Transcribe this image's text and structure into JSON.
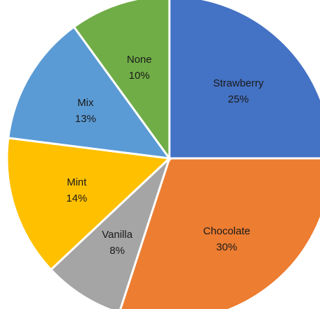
{
  "chart_data": {
    "type": "pie",
    "title": "",
    "start": "12 o'clock",
    "direction": "clockwise",
    "slices": [
      {
        "label": "Strawberry",
        "value": 25,
        "value_label": "25%",
        "color": "#4472C4"
      },
      {
        "label": "Chocolate",
        "value": 30,
        "value_label": "30%",
        "color": "#ED7D31"
      },
      {
        "label": "Vanilla",
        "value": 8,
        "value_label": "8%",
        "color": "#A5A5A5"
      },
      {
        "label": "Mint",
        "value": 14,
        "value_label": "14%",
        "color": "#FFC000"
      },
      {
        "label": "Mix",
        "value": 13,
        "value_label": "13%",
        "color": "#5B9BD5"
      },
      {
        "label": "None",
        "value": 10,
        "value_label": "10%",
        "color": "#70AD47"
      }
    ]
  }
}
